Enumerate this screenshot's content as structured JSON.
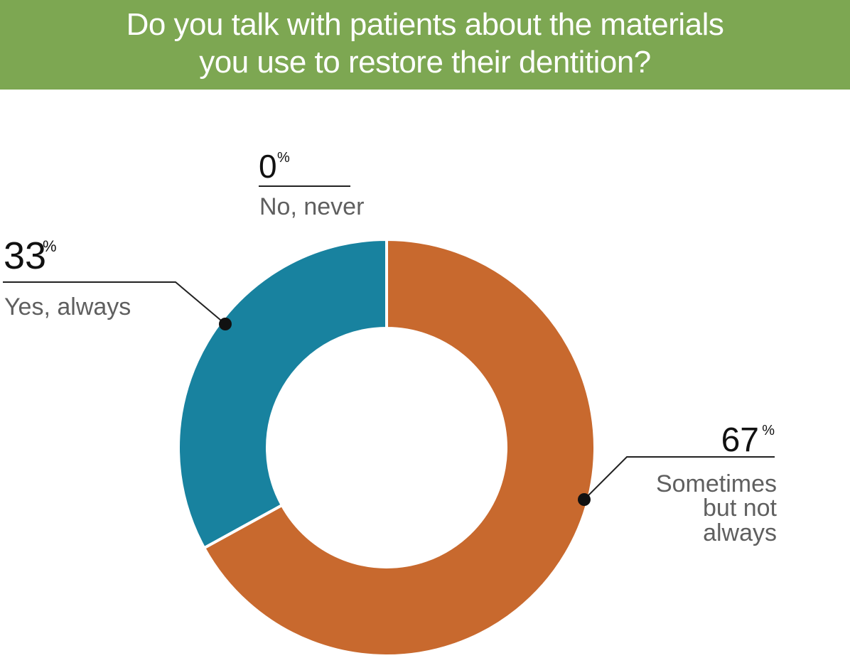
{
  "title": {
    "line1": "Do you talk with patients about the materials",
    "line2": "you use to restore their dentition?"
  },
  "colors": {
    "header_bg": "#7da752",
    "sometimes": "#c8692e",
    "always": "#18829f",
    "never": "#7da752"
  },
  "chart_data": {
    "type": "pie",
    "style": "donut",
    "title": "Do you talk with patients about the materials you use to restore their dentition?",
    "slices": [
      {
        "key": "sometimes",
        "label_lines": [
          "Sometimes",
          "but not",
          "always"
        ],
        "value": 67,
        "display": "67",
        "color": "#c8692e"
      },
      {
        "key": "always",
        "label_lines": [
          "Yes, always"
        ],
        "value": 33,
        "display": "33",
        "color": "#18829f"
      },
      {
        "key": "never",
        "label_lines": [
          "No, never"
        ],
        "value": 0,
        "display": "0",
        "color": "#7da752"
      }
    ],
    "percent_symbol": "%"
  }
}
